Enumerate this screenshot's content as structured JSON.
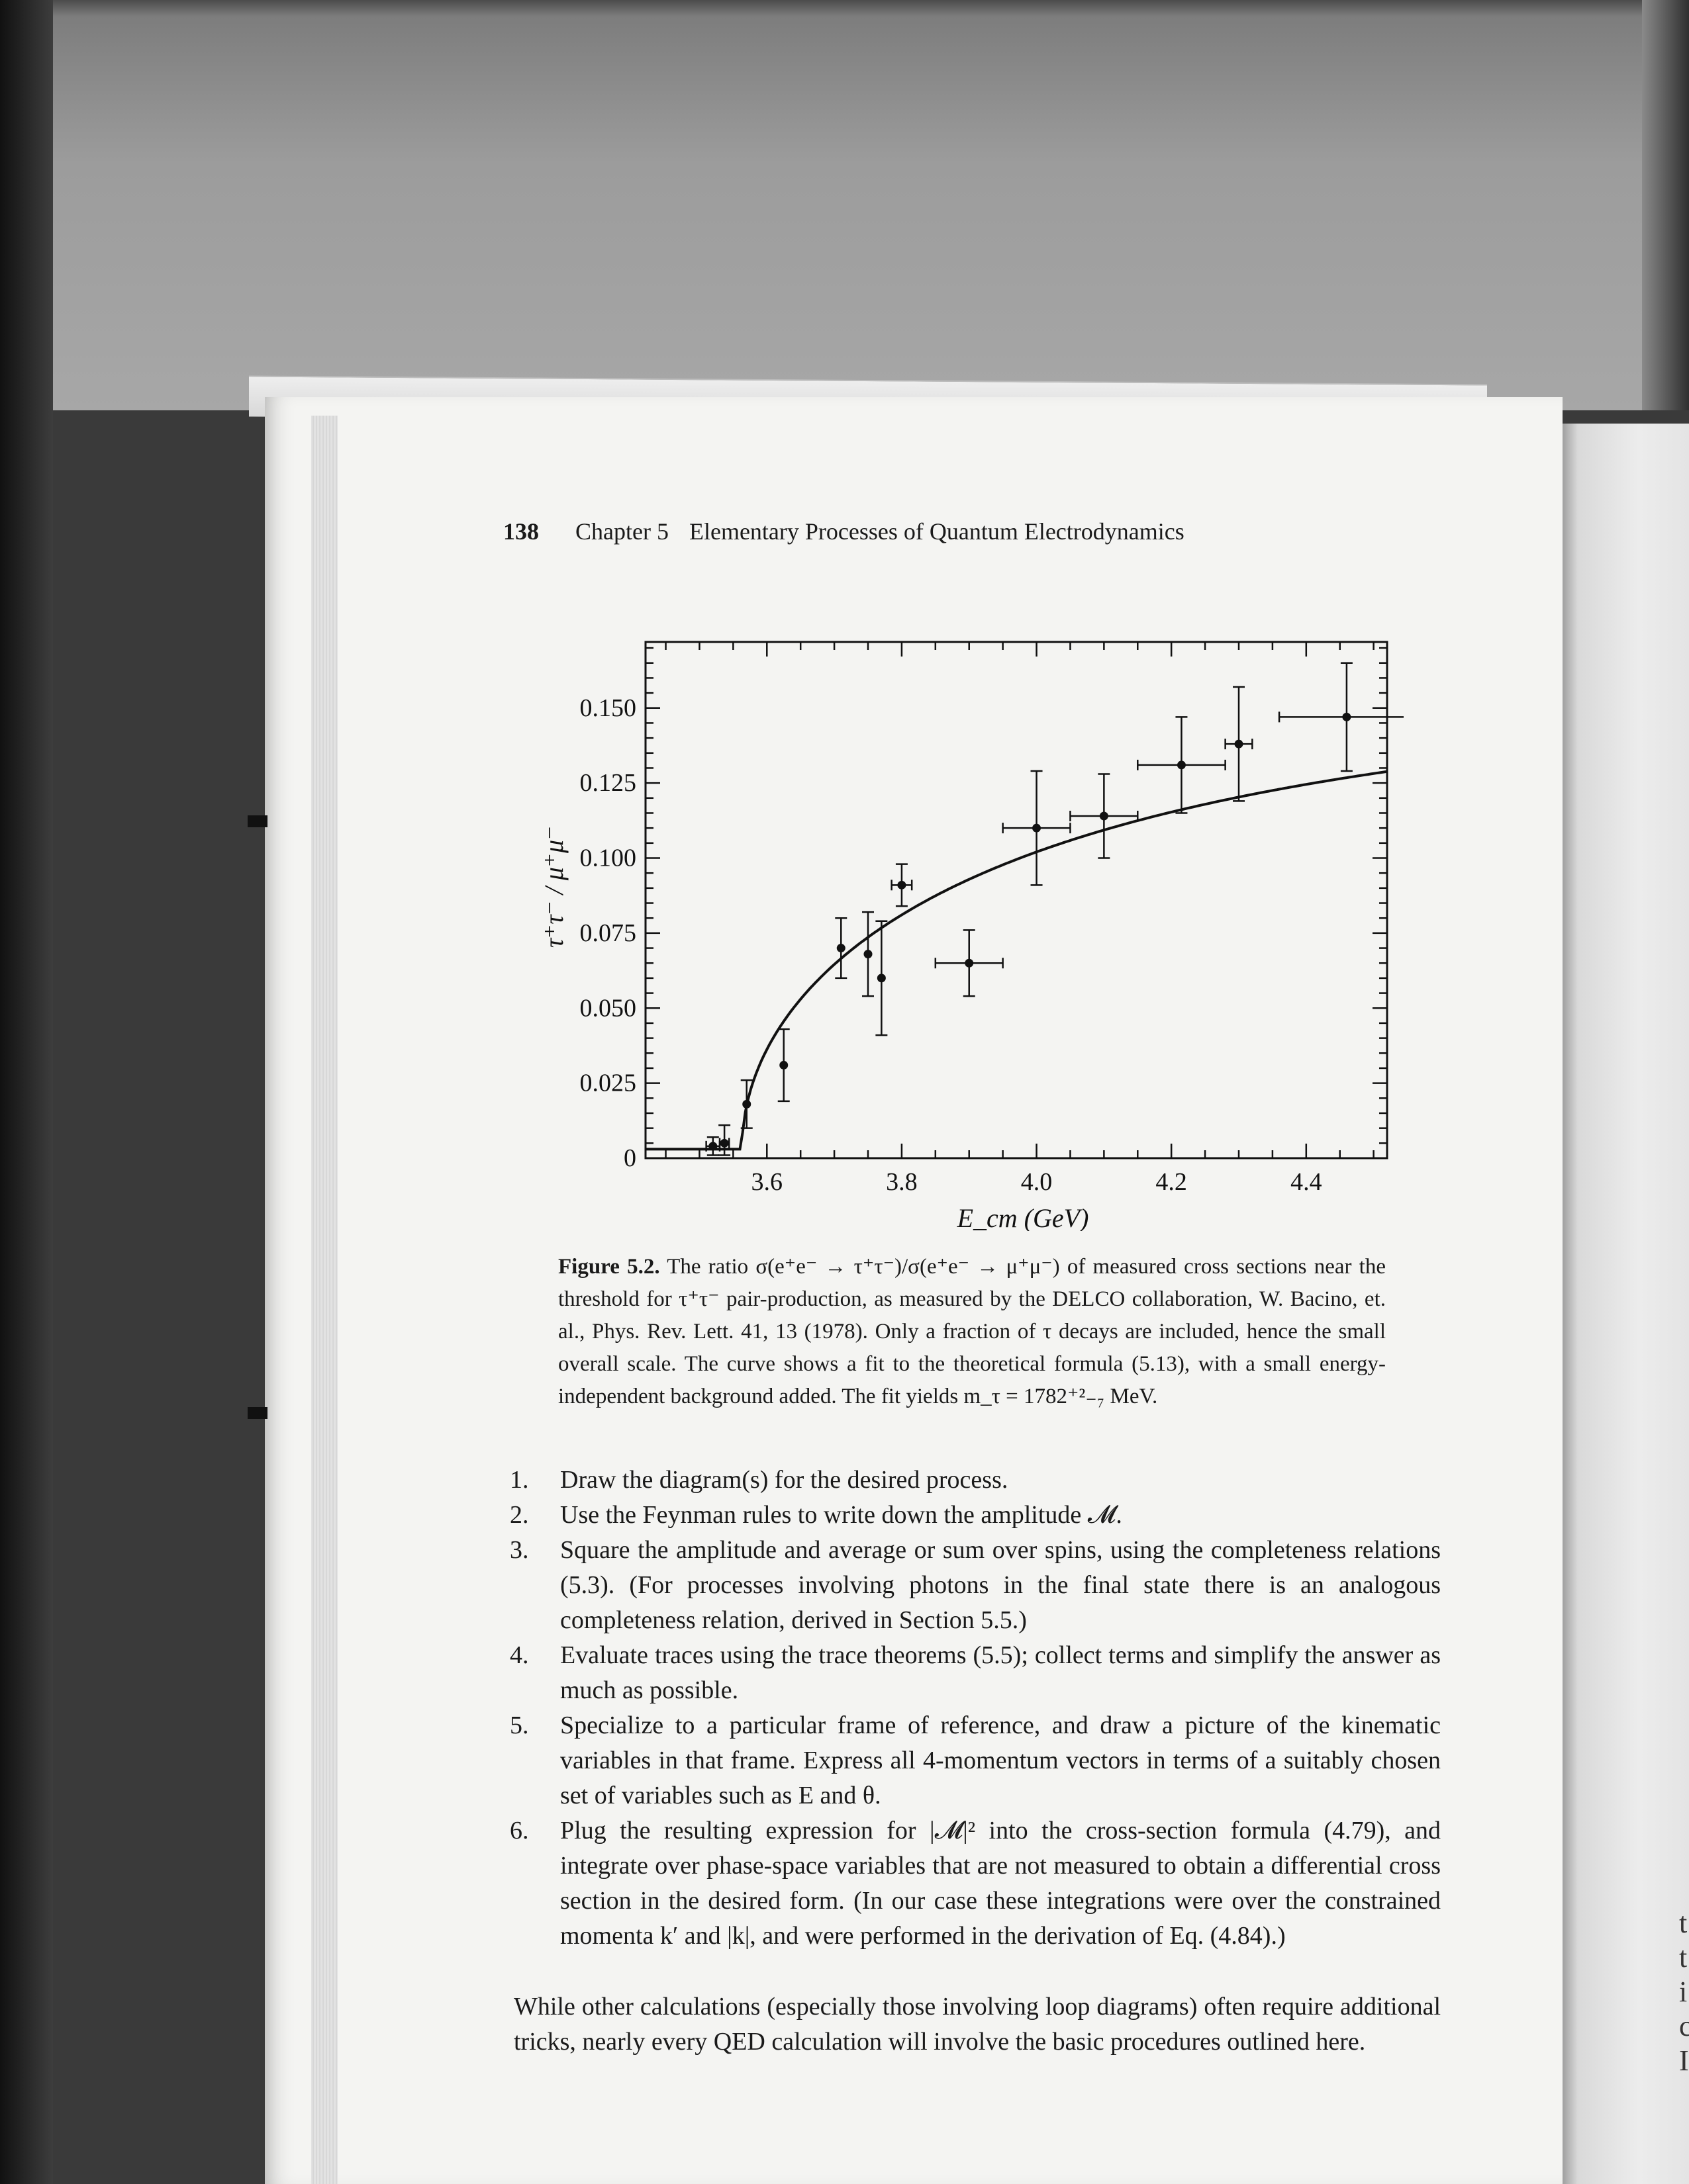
{
  "header": {
    "page_number": "138",
    "chapter": "Chapter 5",
    "chapter_title": "Elementary Processes of Quantum Electrodynamics"
  },
  "chart_data": {
    "type": "scatter",
    "xlabel": "E_cm (GeV)",
    "ylabel": "τ⁺τ⁻ / μ⁺μ⁻",
    "xlim": [
      3.42,
      4.52
    ],
    "ylim": [
      0,
      0.172
    ],
    "x_ticks": [
      {
        "value": 3.6,
        "label": "3.6"
      },
      {
        "value": 3.8,
        "label": "3.8"
      },
      {
        "value": 4.0,
        "label": "4.0"
      },
      {
        "value": 4.2,
        "label": "4.2"
      },
      {
        "value": 4.4,
        "label": "4.4"
      }
    ],
    "y_ticks": [
      {
        "value": 0,
        "label": "0"
      },
      {
        "value": 0.025,
        "label": "0.025"
      },
      {
        "value": 0.05,
        "label": "0.050"
      },
      {
        "value": 0.075,
        "label": "0.075"
      },
      {
        "value": 0.1,
        "label": "0.100"
      },
      {
        "value": 0.125,
        "label": "0.125"
      },
      {
        "value": 0.15,
        "label": "0.150"
      }
    ],
    "grid": false,
    "points": [
      {
        "x": 3.52,
        "y": 0.004,
        "xerr": 0.01,
        "yerr_lo": 0.003,
        "yerr_hi": 0.003
      },
      {
        "x": 3.537,
        "y": 0.005,
        "xerr": 0.007,
        "yerr_lo": 0.004,
        "yerr_hi": 0.006
      },
      {
        "x": 3.57,
        "y": 0.018,
        "xerr": 0.0,
        "yerr_lo": 0.008,
        "yerr_hi": 0.008
      },
      {
        "x": 3.625,
        "y": 0.031,
        "xerr": 0.0,
        "yerr_lo": 0.012,
        "yerr_hi": 0.012
      },
      {
        "x": 3.71,
        "y": 0.07,
        "xerr": 0.0,
        "yerr_lo": 0.01,
        "yerr_hi": 0.01
      },
      {
        "x": 3.75,
        "y": 0.068,
        "xerr": 0.0,
        "yerr_lo": 0.014,
        "yerr_hi": 0.014
      },
      {
        "x": 3.77,
        "y": 0.06,
        "xerr": 0.0,
        "yerr_lo": 0.019,
        "yerr_hi": 0.019
      },
      {
        "x": 3.8,
        "y": 0.091,
        "xerr": 0.015,
        "yerr_lo": 0.007,
        "yerr_hi": 0.007
      },
      {
        "x": 3.9,
        "y": 0.065,
        "xerr": 0.05,
        "yerr_lo": 0.011,
        "yerr_hi": 0.011
      },
      {
        "x": 4.0,
        "y": 0.11,
        "xerr": 0.05,
        "yerr_lo": 0.019,
        "yerr_hi": 0.019
      },
      {
        "x": 4.1,
        "y": 0.114,
        "xerr": 0.05,
        "yerr_lo": 0.014,
        "yerr_hi": 0.014
      },
      {
        "x": 4.215,
        "y": 0.131,
        "xerr": 0.065,
        "yerr_lo": 0.016,
        "yerr_hi": 0.016
      },
      {
        "x": 4.3,
        "y": 0.138,
        "xerr": 0.02,
        "yerr_lo": 0.019,
        "yerr_hi": 0.019
      },
      {
        "x": 4.46,
        "y": 0.147,
        "xerr": 0.1,
        "yerr_lo": 0.018,
        "yerr_hi": 0.018
      }
    ],
    "fit_curve": {
      "threshold": 3.563,
      "background": 0.003,
      "scale": 0.15
    }
  },
  "caption": {
    "label": "Figure 5.2.",
    "text": "The ratio σ(e⁺e⁻ → τ⁺τ⁻)/σ(e⁺e⁻ → μ⁺μ⁻) of measured cross sections near the threshold for τ⁺τ⁻ pair-production, as measured by the DELCO collaboration, W. Bacino, et. al., Phys. Rev. Lett. 41, 13 (1978). Only a fraction of τ decays are included, hence the small overall scale. The curve shows a fit to the theoretical formula (5.13), with a small energy-independent background added. The fit yields m_τ = 1782⁺²₋₇ MeV."
  },
  "steps": [
    {
      "num": "1.",
      "text": "Draw the diagram(s) for the desired process."
    },
    {
      "num": "2.",
      "text": "Use the Feynman rules to write down the amplitude 𝓜."
    },
    {
      "num": "3.",
      "text": "Square the amplitude and average or sum over spins, using the completeness relations (5.3). (For processes involving photons in the final state there is an analogous completeness relation, derived in Section 5.5.)"
    },
    {
      "num": "4.",
      "text": "Evaluate traces using the trace theorems (5.5); collect terms and simplify the answer as much as possible."
    },
    {
      "num": "5.",
      "text": "Specialize to a particular frame of reference, and draw a picture of the kinematic variables in that frame. Express all 4-momentum vectors in terms of a suitably chosen set of variables such as E and θ."
    },
    {
      "num": "6.",
      "text": "Plug the resulting expression for |𝓜|² into the cross-section formula (4.79), and integrate over phase-space variables that are not measured to obtain a differential cross section in the desired form. (In our case these integrations were over the constrained momenta k′ and |k|, and were performed in the derivation of Eq. (4.84).)"
    }
  ],
  "closing": "While other calculations (especially those involving loop diagrams) often require additional tricks, nearly every QED calculation will involve the basic procedures outlined here.",
  "facing_page_letters": "t\nt\ni\nc\nI"
}
